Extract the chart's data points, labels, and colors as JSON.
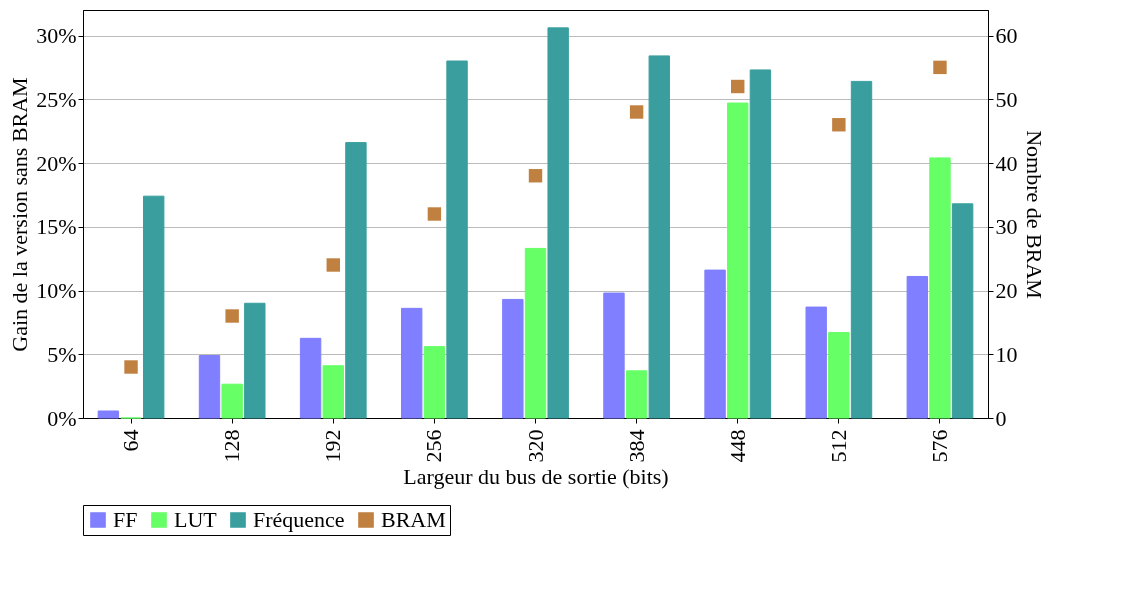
{
  "chart_data": {
    "type": "bar",
    "xlabel": "Largeur du bus de sortie (bits)",
    "ylabel": "Gain de la version sans BRAM",
    "y2label": "Nombre de BRAM",
    "categories": [
      "64",
      "128",
      "192",
      "256",
      "320",
      "384",
      "448",
      "512",
      "576"
    ],
    "series": [
      {
        "name": "FF",
        "color": "#7f7fff",
        "values": [
          0.55,
          4.9,
          6.25,
          8.6,
          9.3,
          9.8,
          11.6,
          8.7,
          11.1
        ]
      },
      {
        "name": "LUT",
        "color": "#66ff66",
        "values": [
          0,
          2.65,
          4.1,
          5.6,
          13.3,
          3.7,
          24.7,
          6.7,
          20.4
        ]
      },
      {
        "name": "Fréquence",
        "color": "#3a9e9e",
        "values": [
          17.4,
          9.0,
          21.6,
          28.0,
          30.6,
          28.4,
          27.3,
          26.4,
          16.8
        ]
      },
      {
        "name": "BRAM",
        "color": "#c08040",
        "type": "scatter",
        "axis": "y2",
        "marker": "square",
        "values": [
          8,
          16,
          24,
          32,
          38,
          48,
          52,
          46,
          55
        ]
      }
    ],
    "ylim": [
      0,
      32
    ],
    "yticks": [
      {
        "value": 0,
        "label": "0%"
      },
      {
        "value": 5,
        "label": "5%"
      },
      {
        "value": 10,
        "label": "10%"
      },
      {
        "value": 15,
        "label": "15%"
      },
      {
        "value": 20,
        "label": "20%"
      },
      {
        "value": 25,
        "label": "25%"
      },
      {
        "value": 30,
        "label": "30%"
      }
    ],
    "y2lim": [
      0,
      64
    ],
    "y2ticks": [
      0,
      10,
      20,
      30,
      40,
      50,
      60
    ],
    "grid": "y",
    "legend": "bottom"
  }
}
